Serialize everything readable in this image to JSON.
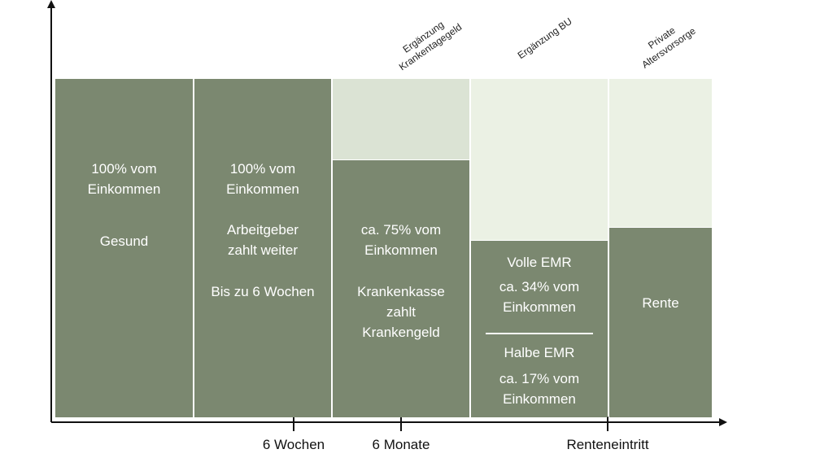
{
  "columns": [
    {
      "lines1": [
        "100% vom",
        "Einkommen"
      ],
      "label": "Gesund"
    },
    {
      "lines1": [
        "100% vom",
        "Einkommen"
      ],
      "lines2": [
        "Arbeitgeber",
        "zahlt weiter"
      ],
      "label": "Bis zu 6 Wochen"
    },
    {
      "lines1": [
        "ca. 75% vom",
        "Einkommen"
      ],
      "lines2": [
        "Krankenkasse",
        "zahlt",
        "Krankengeld"
      ]
    },
    {
      "top": "Volle EMR",
      "top_value": [
        "ca. 34% vom",
        "Einkommen"
      ],
      "bottom": "Halbe EMR",
      "bottom_value": [
        "ca. 17% vom",
        "Einkommen"
      ]
    },
    {
      "label": "Rente"
    }
  ],
  "supplements": [
    {
      "lines": [
        "Ergänzung",
        "Krankentagegeld"
      ]
    },
    {
      "lines": [
        "Ergänzung BU"
      ]
    },
    {
      "lines": [
        "Private",
        "Altersvorsorge"
      ]
    }
  ],
  "ticks": [
    "6 Wochen",
    "6 Monate",
    "Renteneintritt"
  ]
}
